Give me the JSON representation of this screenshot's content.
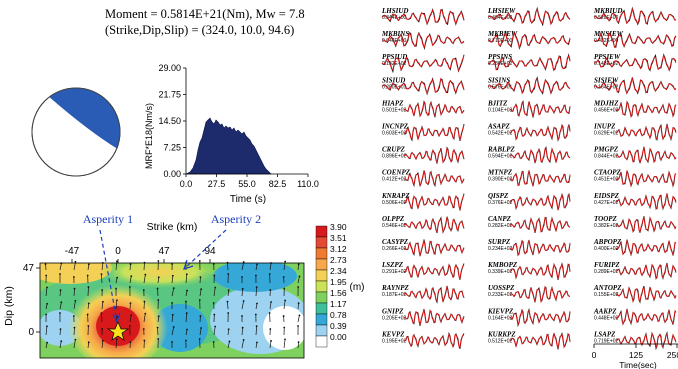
{
  "header": {
    "moment_line": "Moment = 0.5814E+21(Nm), Mw = 7.8",
    "mechanism_line": "(Strike,Dip,Slip) = (324.0, 10.0,   94.6)"
  },
  "mrf": {
    "ylabel": "MRF*E18(Nm/s)",
    "xlabel": "Time (s)",
    "yticks": [
      "29.00",
      "21.75",
      "14.50",
      "7.25",
      "0.00"
    ],
    "xticks": [
      "0.0",
      "27.5",
      "55.0",
      "82.5",
      "110.0"
    ],
    "xlim": [
      0,
      110
    ],
    "ylim": [
      0,
      29
    ]
  },
  "slip_map": {
    "strike_label": "Strike (km)",
    "dip_label": "Dip (km)",
    "xticks": [
      "-47",
      "0",
      "47",
      "94"
    ],
    "yticks": [
      "47",
      "0"
    ],
    "unit": "(m)",
    "colorbar_values": [
      "3.90",
      "3.51",
      "3.12",
      "2.73",
      "2.34",
      "1.95",
      "1.56",
      "1.17",
      "0.78",
      "0.39",
      "0.00"
    ],
    "colorbar_colors": [
      "#d7191c",
      "#e34a33",
      "#f07a30",
      "#f6a84a",
      "#f4d056",
      "#c9e25a",
      "#7fd15f",
      "#3fbf9a",
      "#35a8d8",
      "#9dd3f0",
      "#ffffff"
    ],
    "asperity1": "Asperity 1",
    "asperity2": "Asperity 2"
  },
  "waveform_axis": {
    "ticks": [
      "0",
      "125",
      "250"
    ],
    "label": "Time(sec)"
  },
  "stations": [
    {
      "name": "LHSIUD",
      "amp": "0.344E+00"
    },
    {
      "name": "LHSIEW",
      "amp": "0.464E+00"
    },
    {
      "name": "MKBIUD",
      "amp": "0.520E+00"
    },
    {
      "name": "MKBINS",
      "amp": "0.646E+00"
    },
    {
      "name": "MKBIEW",
      "amp": "0.710E+00"
    },
    {
      "name": "MNSIEW",
      "amp": "0.482E+00"
    },
    {
      "name": "PPSIUD",
      "amp": "0.132E+02"
    },
    {
      "name": "PPSINS",
      "amp": "0.280E+02"
    },
    {
      "name": "PPSIEW",
      "amp": "0.148E+02"
    },
    {
      "name": "SISIUD",
      "amp": "0.280E+01"
    },
    {
      "name": "SISINS",
      "amp": "0.576E+01"
    },
    {
      "name": "SISIEW",
      "amp": "0.164E+02"
    },
    {
      "name": "HIAPZ",
      "amp": "0.501E+02"
    },
    {
      "name": "BJITZ",
      "amp": "0.104E+03"
    },
    {
      "name": "MDJHZ",
      "amp": "0.456E+02"
    },
    {
      "name": "INCNPZ",
      "amp": "0.603E+02"
    },
    {
      "name": "ASAPZ",
      "amp": "0.542E+02"
    },
    {
      "name": "INUPZ",
      "amp": "0.629E+02"
    },
    {
      "name": "CRUPZ",
      "amp": "0.896E+02"
    },
    {
      "name": "RABLPZ",
      "amp": "0.594E+02"
    },
    {
      "name": "PMGPZ",
      "amp": "0.844E+02"
    },
    {
      "name": "COENPZ",
      "amp": "0.412E+02"
    },
    {
      "name": "MTNPZ",
      "amp": "0.390E+02"
    },
    {
      "name": "CTAOPZ",
      "amp": "0.451E+02"
    },
    {
      "name": "KNRAPZ",
      "amp": "0.506E+02"
    },
    {
      "name": "QISPZ",
      "amp": "0.376E+02"
    },
    {
      "name": "EIDSPZ",
      "amp": "0.427E+02"
    },
    {
      "name": "OLPPZ",
      "amp": "0.546E+02"
    },
    {
      "name": "CANPZ",
      "amp": "0.282E+02"
    },
    {
      "name": "TOOPZ",
      "amp": "0.382E+02"
    },
    {
      "name": "CASYPZ",
      "amp": "0.266E+02"
    },
    {
      "name": "SURPZ",
      "amp": "0.234E+02"
    },
    {
      "name": "ABPOPZ",
      "amp": "0.400E+02"
    },
    {
      "name": "LSZPZ",
      "amp": "0.291E+02"
    },
    {
      "name": "KMBOPZ",
      "amp": "0.339E+02"
    },
    {
      "name": "FURIPZ",
      "amp": "0.289E+02"
    },
    {
      "name": "RAYNPZ",
      "amp": "0.187E+02"
    },
    {
      "name": "UOSSPZ",
      "amp": "0.233E+02"
    },
    {
      "name": "ANTOPZ",
      "amp": "0.155E+02"
    },
    {
      "name": "GNIPZ",
      "amp": "0.205E+02"
    },
    {
      "name": "KIEVPZ",
      "amp": "0.164E+02"
    },
    {
      "name": "AAKPZ",
      "amp": "0.448E+02"
    },
    {
      "name": "KEVPZ",
      "amp": "0.195E+02"
    },
    {
      "name": "KURKPZ",
      "amp": "0.512E+02"
    },
    {
      "name": "LSAPZ",
      "amp": "0.719E+02"
    }
  ]
}
